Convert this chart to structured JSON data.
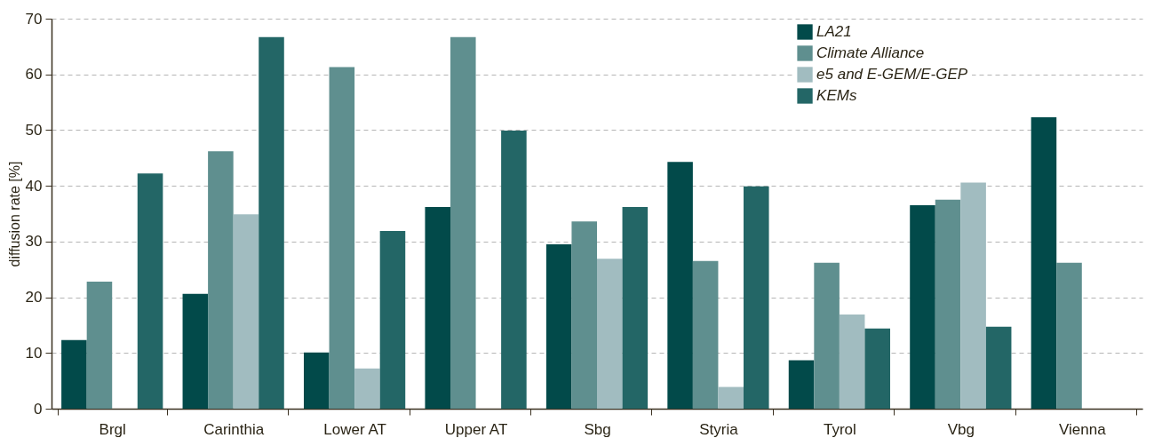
{
  "chart_data": {
    "type": "bar",
    "ylabel": "diffusion rate [%]",
    "categories": [
      "Brgl",
      "Carinthia",
      "Lower AT",
      "Upper AT",
      "Sbg",
      "Styria",
      "Tyrol",
      "Vbg",
      "Vienna"
    ],
    "series": [
      {
        "name": "LA21",
        "color": "#024a4a",
        "values": [
          12.3,
          20.6,
          10.1,
          36.2,
          29.5,
          44.3,
          8.7,
          36.5,
          52.3
        ]
      },
      {
        "name": "Climate Alliance",
        "color": "#5f8f8f",
        "values": [
          22.8,
          46.2,
          61.3,
          66.7,
          33.6,
          26.5,
          26.2,
          37.5,
          26.2
        ]
      },
      {
        "name": "e5 and E-GEM/E-GEP",
        "color": "#a1bcc0",
        "values": [
          null,
          34.9,
          7.2,
          null,
          26.9,
          3.9,
          16.9,
          40.6,
          null
        ]
      },
      {
        "name": "KEMs",
        "color": "#236666",
        "values": [
          42.2,
          66.7,
          31.9,
          49.9,
          36.2,
          39.9,
          14.4,
          14.7,
          null
        ]
      }
    ],
    "ylim": [
      0,
      70
    ],
    "yticks": [
      0,
      10,
      20,
      30,
      40,
      50,
      60,
      70
    ],
    "grid": "y",
    "legend": "top right"
  }
}
